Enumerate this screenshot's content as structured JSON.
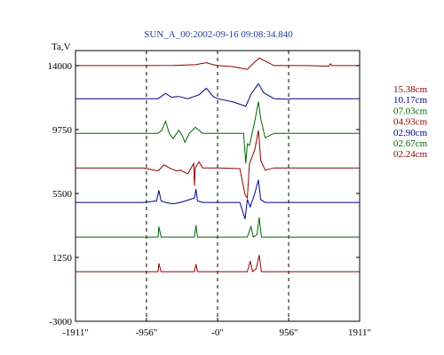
{
  "chart_data": {
    "type": "line",
    "title": "SUN_A_00:2002-09-16 09:08:34.840",
    "ylabel": "Ta,V",
    "xlim": [
      -1911,
      1911
    ],
    "ylim": [
      -3000,
      15000
    ],
    "grid": {
      "vertical_dashed": [
        -956,
        0,
        956
      ],
      "horizontal": false
    },
    "x_ticks": [
      {
        "value": -1911,
        "label": "-1911\""
      },
      {
        "value": -956,
        "label": "-956\""
      },
      {
        "value": 0,
        "label": "-0\""
      },
      {
        "value": 956,
        "label": "956\""
      },
      {
        "value": 1911,
        "label": "1911\""
      }
    ],
    "y_ticks": [
      {
        "value": 14000,
        "label": "14000"
      },
      {
        "value": 9750,
        "label": "9750"
      },
      {
        "value": 5500,
        "label": "5500"
      },
      {
        "value": 1250,
        "label": "1250"
      },
      {
        "value": -3000,
        "label": "-3000"
      }
    ],
    "legend_position": "right",
    "series": [
      {
        "name": "15.38cm",
        "color": "#8b0000",
        "baseline": 14000,
        "points": [
          [
            -1911,
            0
          ],
          [
            -1000,
            0
          ],
          [
            -600,
            10
          ],
          [
            -300,
            60
          ],
          [
            -150,
            200
          ],
          [
            -60,
            60
          ],
          [
            0,
            0
          ],
          [
            200,
            -60
          ],
          [
            400,
            -250
          ],
          [
            480,
            150
          ],
          [
            560,
            500
          ],
          [
            650,
            280
          ],
          [
            760,
            0
          ],
          [
            1000,
            0
          ],
          [
            1200,
            0
          ],
          [
            1500,
            -40
          ],
          [
            1520,
            120
          ],
          [
            1540,
            0
          ],
          [
            1911,
            0
          ]
        ]
      },
      {
        "name": "10.17cm",
        "color": "#00008b",
        "baseline": 11800,
        "points": [
          [
            -1911,
            0
          ],
          [
            -800,
            0
          ],
          [
            -700,
            350
          ],
          [
            -620,
            100
          ],
          [
            -520,
            150
          ],
          [
            -400,
            0
          ],
          [
            -250,
            260
          ],
          [
            -150,
            700
          ],
          [
            -60,
            150
          ],
          [
            0,
            0
          ],
          [
            200,
            -200
          ],
          [
            380,
            -500
          ],
          [
            450,
            300
          ],
          [
            550,
            1000
          ],
          [
            620,
            400
          ],
          [
            760,
            0
          ],
          [
            960,
            -40
          ],
          [
            1000,
            0
          ],
          [
            1911,
            0
          ]
        ]
      },
      {
        "name": "07.03cm",
        "color": "#006400",
        "baseline": 9500,
        "points": [
          [
            -1911,
            0
          ],
          [
            -800,
            0
          ],
          [
            -750,
            200
          ],
          [
            -700,
            800
          ],
          [
            -650,
            0
          ],
          [
            -600,
            -350
          ],
          [
            -520,
            200
          ],
          [
            -470,
            -200
          ],
          [
            -440,
            -600
          ],
          [
            -380,
            0
          ],
          [
            -300,
            400
          ],
          [
            -200,
            0
          ],
          [
            0,
            0
          ],
          [
            350,
            0
          ],
          [
            380,
            -2000
          ],
          [
            400,
            -700
          ],
          [
            430,
            -800
          ],
          [
            500,
            800
          ],
          [
            550,
            2100
          ],
          [
            580,
            1000
          ],
          [
            640,
            -300
          ],
          [
            760,
            0
          ],
          [
            1911,
            0
          ]
        ]
      },
      {
        "name": "04.93cm",
        "color": "#8b0000",
        "baseline": 7200,
        "points": [
          [
            -1911,
            0
          ],
          [
            -1000,
            0
          ],
          [
            -800,
            -200
          ],
          [
            -720,
            200
          ],
          [
            -650,
            0
          ],
          [
            -550,
            -200
          ],
          [
            -500,
            -150
          ],
          [
            -400,
            -400
          ],
          [
            -320,
            300
          ],
          [
            -310,
            -1200
          ],
          [
            -300,
            0
          ],
          [
            -250,
            400
          ],
          [
            -200,
            0
          ],
          [
            0,
            0
          ],
          [
            300,
            -50
          ],
          [
            370,
            -1800
          ],
          [
            400,
            -2000
          ],
          [
            430,
            300
          ],
          [
            500,
            1200
          ],
          [
            550,
            2500
          ],
          [
            580,
            500
          ],
          [
            640,
            -150
          ],
          [
            760,
            0
          ],
          [
            960,
            0
          ],
          [
            1911,
            0
          ]
        ]
      },
      {
        "name": "02.90cm",
        "color": "#00008b",
        "baseline": 4900,
        "points": [
          [
            -1911,
            0
          ],
          [
            -1000,
            0
          ],
          [
            -820,
            100
          ],
          [
            -790,
            800
          ],
          [
            -760,
            100
          ],
          [
            -700,
            0
          ],
          [
            -600,
            -100
          ],
          [
            -500,
            0
          ],
          [
            -310,
            300
          ],
          [
            -290,
            900
          ],
          [
            -270,
            100
          ],
          [
            -200,
            0
          ],
          [
            0,
            0
          ],
          [
            300,
            0
          ],
          [
            370,
            -1100
          ],
          [
            400,
            200
          ],
          [
            440,
            -300
          ],
          [
            500,
            600
          ],
          [
            550,
            1500
          ],
          [
            580,
            200
          ],
          [
            640,
            0
          ],
          [
            960,
            0
          ],
          [
            1911,
            0
          ]
        ]
      },
      {
        "name": "02.67cm",
        "color": "#006400",
        "baseline": 2600,
        "points": [
          [
            -1911,
            0
          ],
          [
            -1000,
            0
          ],
          [
            -800,
            0
          ],
          [
            -790,
            700
          ],
          [
            -760,
            0
          ],
          [
            -700,
            0
          ],
          [
            -310,
            0
          ],
          [
            -290,
            800
          ],
          [
            -270,
            0
          ],
          [
            -200,
            0
          ],
          [
            0,
            0
          ],
          [
            400,
            0
          ],
          [
            450,
            700
          ],
          [
            480,
            0
          ],
          [
            530,
            150
          ],
          [
            560,
            1300
          ],
          [
            590,
            0
          ],
          [
            960,
            0
          ],
          [
            1911,
            0
          ]
        ]
      },
      {
        "name": "02.24cm",
        "color": "#8b0000",
        "baseline": 300,
        "points": [
          [
            -1911,
            0
          ],
          [
            -1000,
            0
          ],
          [
            -800,
            0
          ],
          [
            -790,
            550
          ],
          [
            -760,
            0
          ],
          [
            -700,
            0
          ],
          [
            -310,
            0
          ],
          [
            -290,
            500
          ],
          [
            -270,
            0
          ],
          [
            -200,
            0
          ],
          [
            0,
            0
          ],
          [
            400,
            0
          ],
          [
            440,
            700
          ],
          [
            470,
            0
          ],
          [
            520,
            200
          ],
          [
            560,
            1100
          ],
          [
            590,
            0
          ],
          [
            960,
            0
          ],
          [
            1911,
            0
          ]
        ]
      }
    ]
  }
}
